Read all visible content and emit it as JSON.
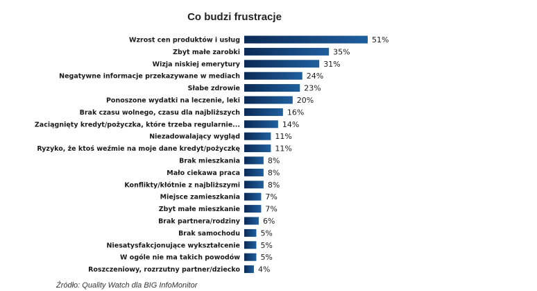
{
  "chart_data": {
    "type": "bar",
    "orientation": "horizontal",
    "title": "Co budzi frustracje",
    "categories": [
      "Wzrost cen produktów i usług",
      "Zbyt małe zarobki",
      "Wizja niskiej emerytury",
      "Negatywne informacje przekazywane w mediach",
      "Słabe zdrowie",
      "Ponoszone wydatki na leczenie, leki",
      "Brak czasu wolnego, czasu dla najbliższych",
      "Zaciągnięty kredyt/pożyczka, które trzeba regularnie...",
      "Niezadowalający wygląd",
      "Ryzyko, że ktoś weźmie na moje dane kredyt/pożyczkę",
      "Brak mieszkania",
      "Mało ciekawa praca",
      "Konflikty/kłótnie z najbliższymi",
      "Miejsce zamieszkania",
      "Zbyt małe mieszkanie",
      "Brak partnera/rodziny",
      "Brak samochodu",
      "Niesatysfakcjonujące wykształcenie",
      "W ogóle nie ma takich powodów",
      "Roszczeniowy, rozrzutny partner/dziecko"
    ],
    "values": [
      51,
      35,
      31,
      24,
      23,
      20,
      16,
      14,
      11,
      11,
      8,
      8,
      8,
      7,
      7,
      6,
      5,
      5,
      5,
      4
    ],
    "value_labels": [
      "51%",
      "35%",
      "31%",
      "24%",
      "23%",
      "20%",
      "16%",
      "14%",
      "11%",
      "11%",
      "8%",
      "8%",
      "8%",
      "7%",
      "7%",
      "6%",
      "5%",
      "5%",
      "5%",
      "4%"
    ],
    "unit": "%",
    "xlim": [
      0,
      51
    ],
    "grid": false,
    "bar_gradient": [
      "#0b2a55",
      "#1f5f9e"
    ]
  },
  "source": "Źródło: Quality Watch dla BIG InfoMonitor"
}
